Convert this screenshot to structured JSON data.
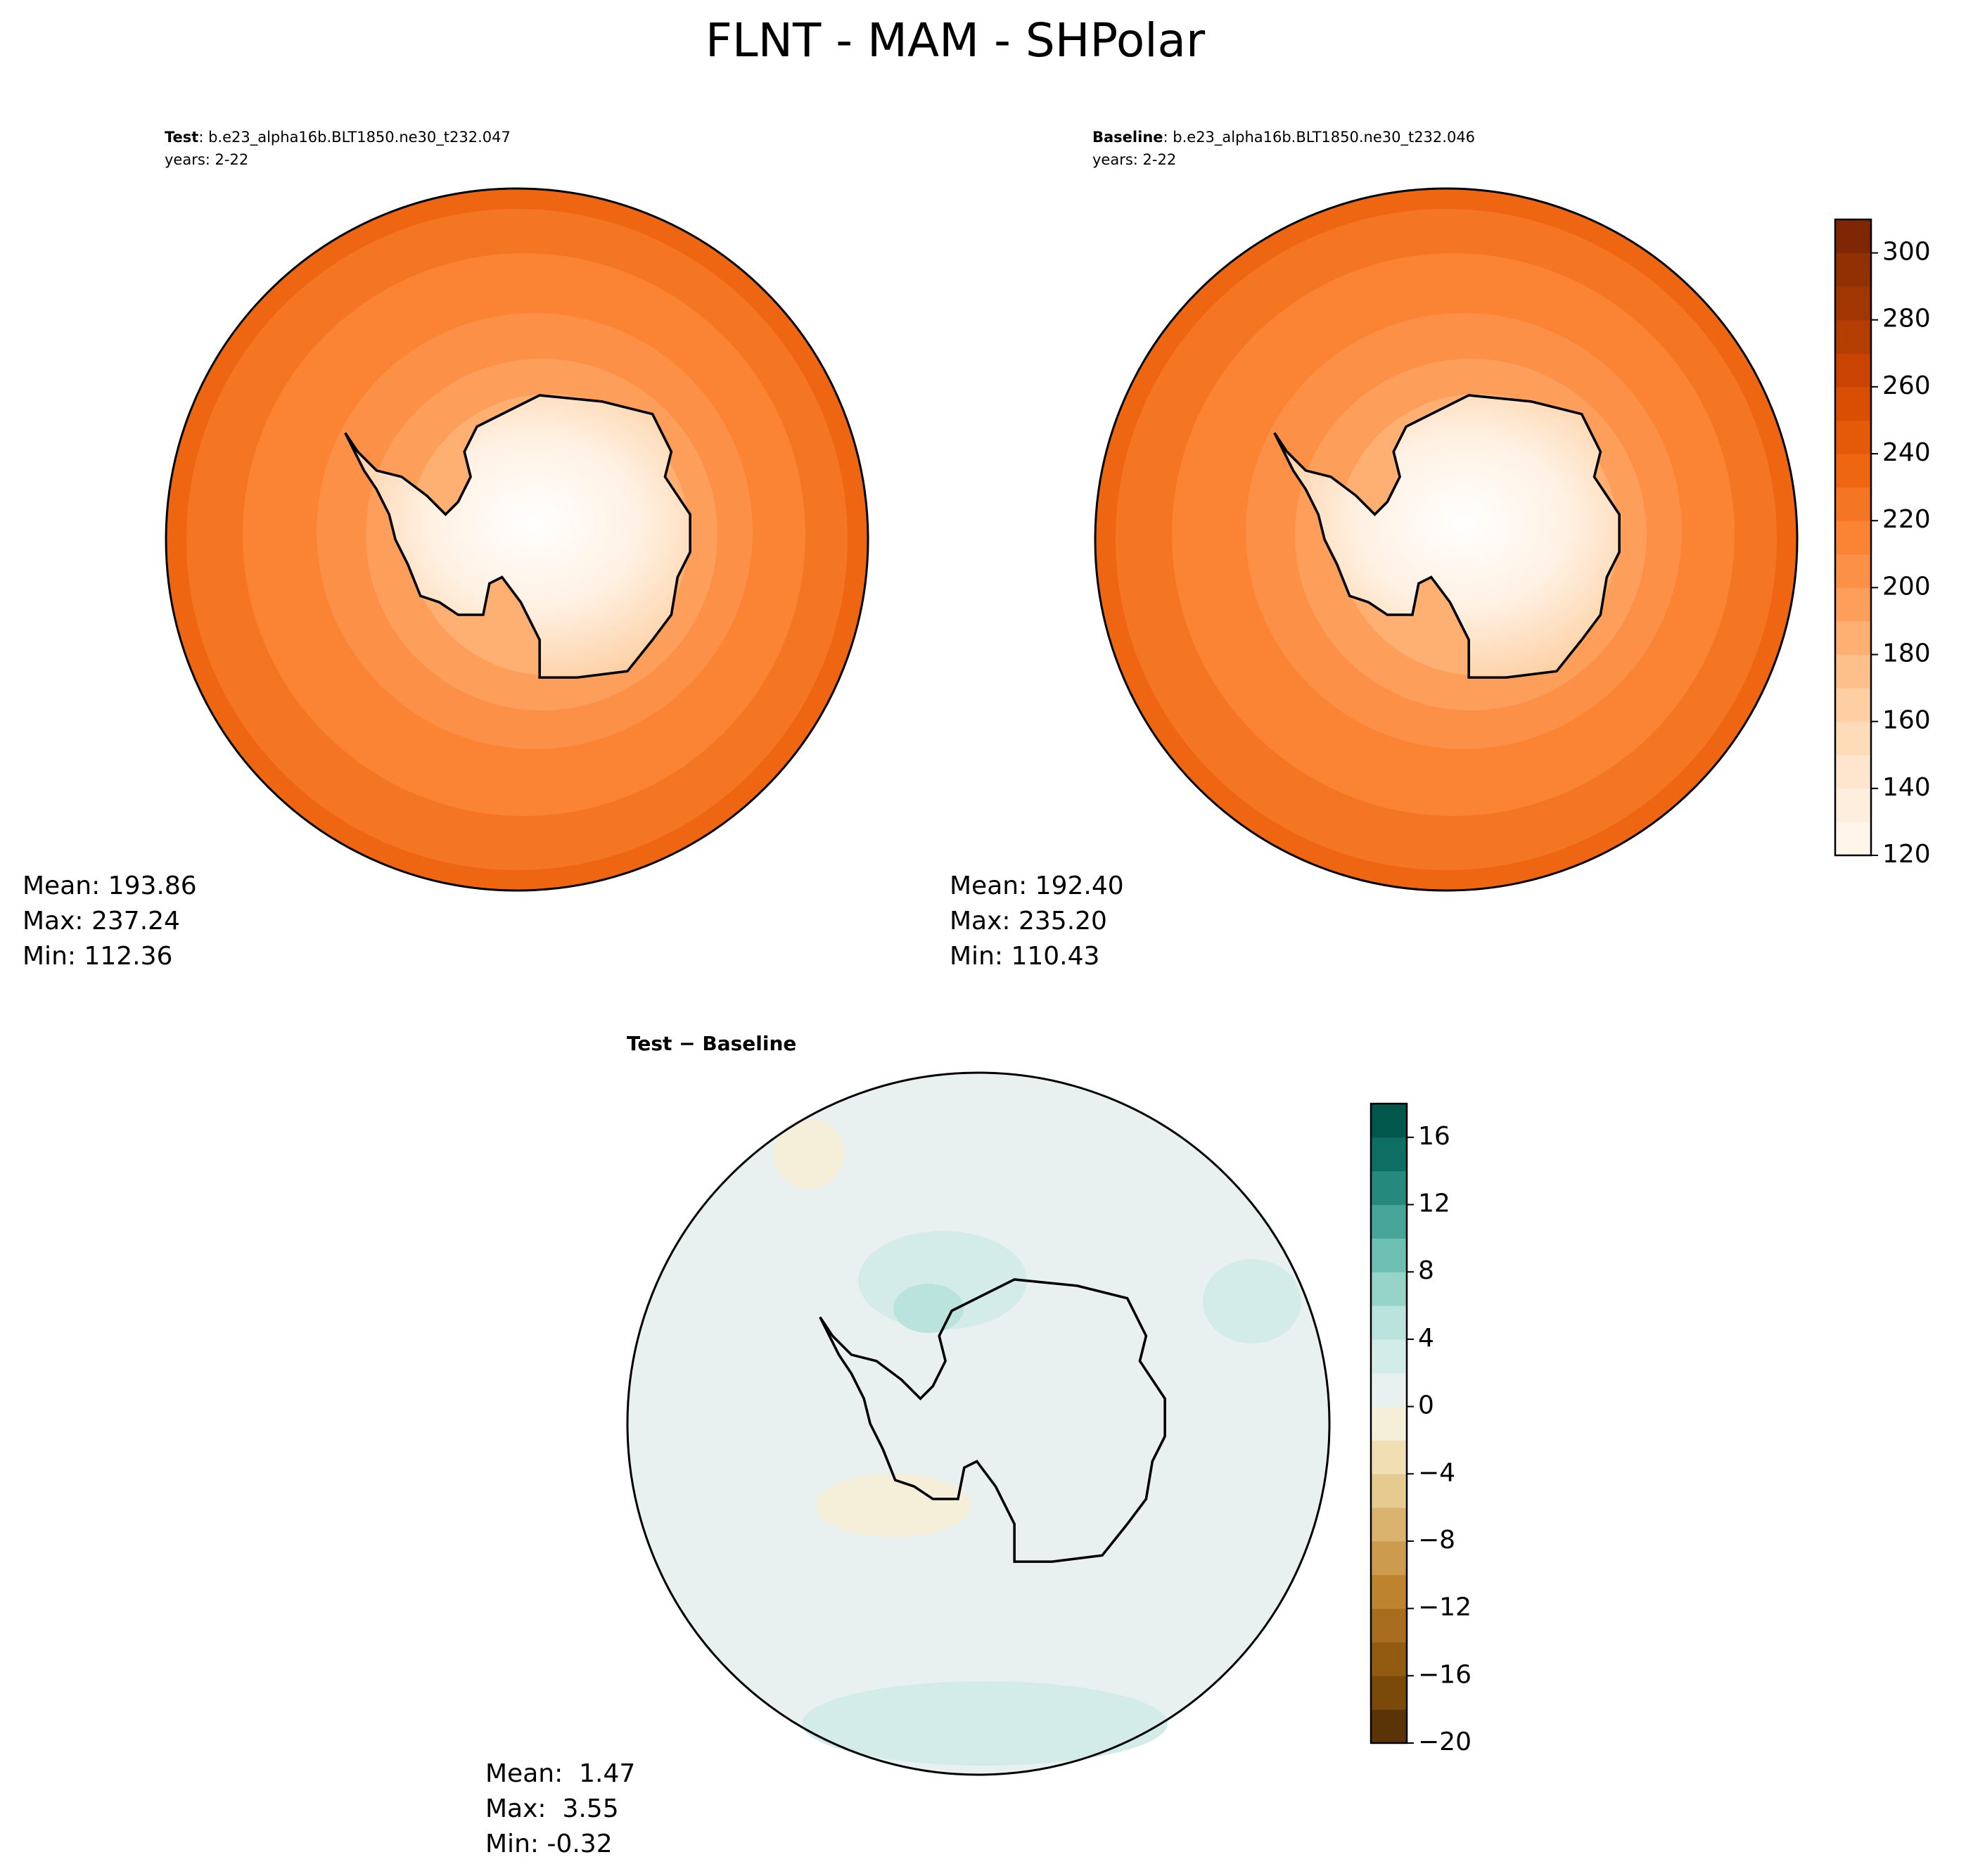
{
  "title": "FLNT - MAM - SHPolar",
  "panels": [
    {
      "label": "Test",
      "case": ": b.e23_alpha16b.BLT1850.ne30_t232.047",
      "years": "years: 2-22",
      "stats": [
        "Mean: 193.86",
        "Max: 237.24",
        "Min: 112.36"
      ]
    },
    {
      "label": "Baseline",
      "case": ": b.e23_alpha16b.BLT1850.ne30_t232.046",
      "years": "years: 2-22",
      "stats": [
        "Mean: 192.40",
        "Max: 235.20",
        "Min: 110.43"
      ]
    }
  ],
  "difference": {
    "title": "Test − Baseline",
    "stats": [
      "Mean:  1.47",
      "Max:  3.55",
      "Min: -0.32"
    ]
  },
  "colorbars": [
    {
      "lim": [
        120,
        310
      ],
      "ticks": [
        120,
        140,
        160,
        180,
        200,
        220,
        240,
        260,
        280,
        300
      ],
      "colors": [
        "#fff5eb",
        "#feeedd",
        "#fee6ce",
        "#fddbb8",
        "#fdcfa2",
        "#fdc08a",
        "#fdb072",
        "#fd9f5b",
        "#fd9047",
        "#fa8434",
        "#f57622",
        "#ee6611",
        "#e55a08",
        "#da4e03",
        "#c94402",
        "#b43d02",
        "#a23603",
        "#913003",
        "#7f2704"
      ]
    },
    {
      "lim": [
        -20,
        18
      ],
      "ticks": [
        {
          "value": -20,
          "label": "−20"
        },
        {
          "value": -16,
          "label": "−16"
        },
        {
          "value": -12,
          "label": "−12"
        },
        {
          "value": -8,
          "label": "−8"
        },
        {
          "value": -4,
          "label": "−4"
        },
        0,
        4,
        8,
        12,
        16
      ],
      "colors": [
        "#5a3307",
        "#7a4a0b",
        "#935a12",
        "#a96d1f",
        "#bd832d",
        "#cd9b4d",
        "#dab46e",
        "#e5cb8f",
        "#efdfb3",
        "#f5eed8",
        "#e8f1ef",
        "#d3ece8",
        "#b9e3dc",
        "#96d4ca",
        "#6ebfb2",
        "#47a498",
        "#25897e",
        "#0d6f63",
        "#01574b"
      ]
    }
  ]
}
